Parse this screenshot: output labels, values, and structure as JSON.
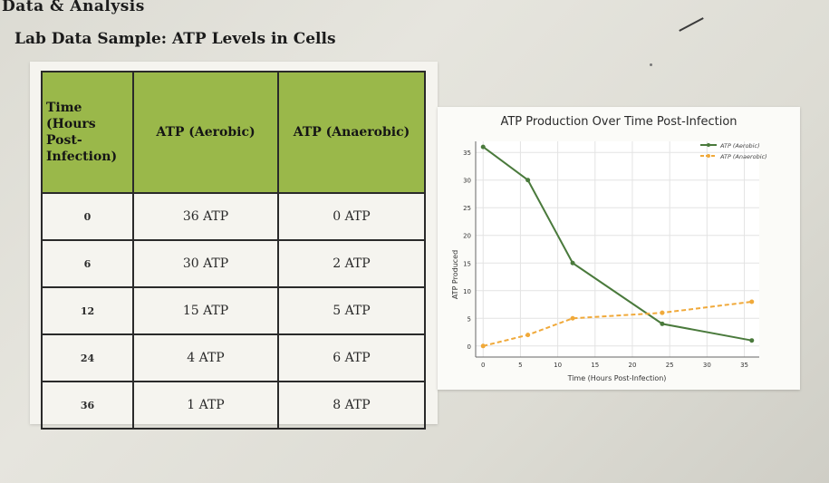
{
  "header": {
    "title": "Data & Analysis"
  },
  "subtitle": "Lab Data Sample: ATP Levels in Cells",
  "table": {
    "headers": [
      "Time (Hours Post-Infection)",
      "ATP (Aerobic)",
      "ATP (Anaerobic)"
    ],
    "rows": [
      [
        "0",
        "36 ATP",
        "0 ATP"
      ],
      [
        "6",
        "30 ATP",
        "2 ATP"
      ],
      [
        "12",
        "15 ATP",
        "5 ATP"
      ],
      [
        "24",
        "4 ATP",
        "6 ATP"
      ],
      [
        "36",
        "1 ATP",
        "8 ATP"
      ]
    ]
  },
  "colors": {
    "aerobic": "#4a7a3c",
    "anaerobic": "#f0a93a",
    "table_header": "#9ab84a"
  },
  "chart_data": {
    "type": "line",
    "title": "ATP Production Over Time Post-Infection",
    "xlabel": "Time (Hours Post-Infection)",
    "ylabel": "ATP Produced",
    "xlim": [
      -1,
      37
    ],
    "ylim": [
      -2,
      37
    ],
    "xticks": [
      0,
      5,
      10,
      15,
      20,
      25,
      30,
      35
    ],
    "yticks": [
      0,
      5,
      10,
      15,
      20,
      25,
      30,
      35
    ],
    "grid": true,
    "legend_position": "top-right",
    "series": [
      {
        "name": "ATP (Aerobic)",
        "x": [
          0,
          6,
          12,
          24,
          36
        ],
        "y": [
          36,
          30,
          15,
          4,
          1
        ],
        "style": "solid"
      },
      {
        "name": "ATP (Anaerobic)",
        "x": [
          0,
          6,
          12,
          24,
          36
        ],
        "y": [
          0,
          2,
          5,
          6,
          8
        ],
        "style": "dashed"
      }
    ]
  }
}
